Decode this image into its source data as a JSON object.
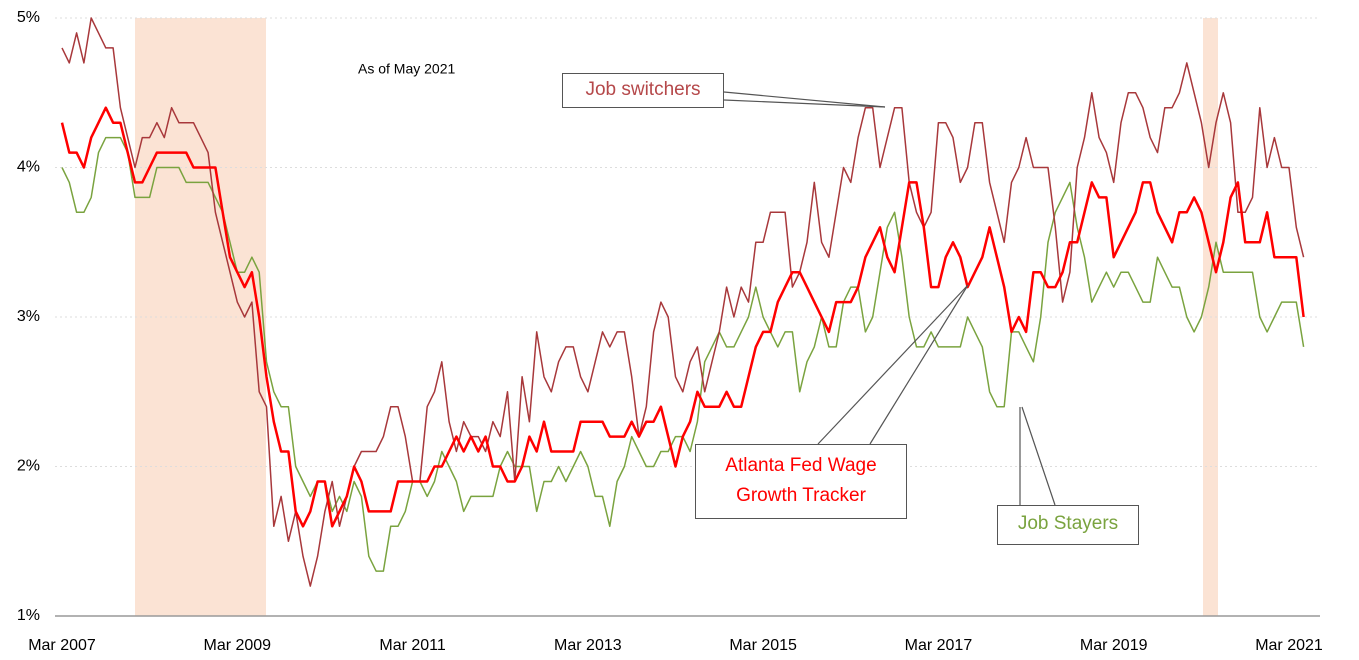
{
  "chart_data": {
    "type": "line",
    "annotation": "As of May 2021",
    "categories": [
      "Mar 2007",
      null,
      null,
      null,
      null,
      null,
      null,
      null,
      null,
      null,
      null,
      null,
      null,
      null,
      null,
      null,
      null,
      null,
      null,
      null,
      null,
      null,
      null,
      null,
      "Mar 2009",
      null,
      null,
      null,
      null,
      null,
      null,
      null,
      null,
      null,
      null,
      null,
      null,
      null,
      null,
      null,
      null,
      null,
      null,
      null,
      null,
      null,
      null,
      null,
      "Mar 2011",
      null,
      null,
      null,
      null,
      null,
      null,
      null,
      null,
      null,
      null,
      null,
      null,
      null,
      null,
      null,
      null,
      null,
      null,
      null,
      null,
      null,
      null,
      null,
      "Mar 2013",
      null,
      null,
      null,
      null,
      null,
      null,
      null,
      null,
      null,
      null,
      null,
      null,
      null,
      null,
      null,
      null,
      null,
      null,
      null,
      null,
      null,
      null,
      null,
      "Mar 2015",
      null,
      null,
      null,
      null,
      null,
      null,
      null,
      null,
      null,
      null,
      null,
      null,
      null,
      null,
      null,
      null,
      null,
      null,
      null,
      null,
      null,
      null,
      null,
      "Mar 2017",
      null,
      null,
      null,
      null,
      null,
      null,
      null,
      null,
      null,
      null,
      null,
      null,
      null,
      null,
      null,
      null,
      null,
      null,
      null,
      null,
      null,
      null,
      null,
      "Mar 2019",
      null,
      null,
      null,
      null,
      null,
      null,
      null,
      null,
      null,
      null,
      null,
      null,
      null,
      null,
      null,
      null,
      null,
      null,
      null,
      null,
      null,
      null,
      null,
      "Mar 2021",
      null,
      null
    ],
    "series": [
      {
        "name": "Job switchers",
        "color": "#a8383b",
        "values": [
          4.8,
          4.7,
          4.9,
          4.7,
          5.0,
          4.9,
          4.8,
          4.8,
          4.4,
          4.2,
          4.0,
          4.2,
          4.2,
          4.3,
          4.2,
          4.4,
          4.3,
          4.3,
          4.3,
          4.2,
          4.1,
          3.7,
          3.5,
          3.3,
          3.1,
          3.0,
          3.1,
          2.5,
          2.4,
          1.6,
          1.8,
          1.5,
          1.7,
          1.4,
          1.2,
          1.4,
          1.7,
          1.9,
          1.6,
          1.8,
          2.0,
          2.1,
          2.1,
          2.1,
          2.2,
          2.4,
          2.4,
          2.2,
          1.9,
          1.9,
          2.4,
          2.5,
          2.7,
          2.3,
          2.1,
          2.3,
          2.2,
          2.2,
          2.1,
          2.3,
          2.2,
          2.5,
          1.9,
          2.6,
          2.3,
          2.9,
          2.6,
          2.5,
          2.7,
          2.8,
          2.8,
          2.6,
          2.5,
          2.7,
          2.9,
          2.8,
          2.9,
          2.9,
          2.6,
          2.2,
          2.4,
          2.9,
          3.1,
          3.0,
          2.6,
          2.5,
          2.7,
          2.8,
          2.5,
          2.7,
          2.9,
          3.2,
          3.0,
          3.2,
          3.1,
          3.5,
          3.5,
          3.7,
          3.7,
          3.7,
          3.2,
          3.3,
          3.5,
          3.9,
          3.5,
          3.4,
          3.7,
          4.0,
          3.9,
          4.2,
          4.4,
          4.4,
          4.0,
          4.2,
          4.4,
          4.4,
          3.9,
          3.7,
          3.6,
          3.7,
          4.3,
          4.3,
          4.2,
          3.9,
          4.0,
          4.3,
          4.3,
          3.9,
          3.7,
          3.5,
          3.9,
          4.0,
          4.2,
          4.0,
          4.0,
          4.0,
          3.6,
          3.1,
          3.3,
          4.0,
          4.2,
          4.5,
          4.2,
          4.1,
          3.9,
          4.3,
          4.5,
          4.5,
          4.4,
          4.2,
          4.1,
          4.4,
          4.4,
          4.5,
          4.7,
          4.5,
          4.3,
          4.0,
          4.3,
          4.5,
          4.3,
          3.7,
          3.7,
          3.8,
          4.4,
          4.0,
          4.2,
          4.0,
          4.0,
          3.6,
          3.4
        ]
      },
      {
        "name": "Atlanta Fed Wage Growth Tracker",
        "color": "#ff0000",
        "values": [
          4.3,
          4.1,
          4.1,
          4.0,
          4.2,
          4.3,
          4.4,
          4.3,
          4.3,
          4.1,
          3.9,
          3.9,
          4.0,
          4.1,
          4.1,
          4.1,
          4.1,
          4.1,
          4.0,
          4.0,
          4.0,
          4.0,
          3.7,
          3.4,
          3.3,
          3.2,
          3.3,
          3.0,
          2.6,
          2.3,
          2.1,
          2.1,
          1.7,
          1.6,
          1.7,
          1.9,
          1.9,
          1.6,
          1.7,
          1.8,
          2.0,
          1.9,
          1.7,
          1.7,
          1.7,
          1.7,
          1.9,
          1.9,
          1.9,
          1.9,
          1.9,
          2.0,
          2.0,
          2.1,
          2.2,
          2.1,
          2.2,
          2.1,
          2.2,
          2.0,
          2.0,
          1.9,
          1.9,
          2.0,
          2.2,
          2.1,
          2.3,
          2.1,
          2.1,
          2.1,
          2.1,
          2.3,
          2.3,
          2.3,
          2.3,
          2.2,
          2.2,
          2.2,
          2.3,
          2.2,
          2.3,
          2.3,
          2.4,
          2.2,
          2.0,
          2.2,
          2.3,
          2.5,
          2.4,
          2.4,
          2.4,
          2.5,
          2.4,
          2.4,
          2.6,
          2.8,
          2.9,
          2.9,
          3.1,
          3.2,
          3.3,
          3.3,
          3.2,
          3.1,
          3.0,
          2.9,
          3.1,
          3.1,
          3.1,
          3.2,
          3.4,
          3.5,
          3.6,
          3.4,
          3.3,
          3.6,
          3.9,
          3.9,
          3.6,
          3.2,
          3.2,
          3.4,
          3.5,
          3.4,
          3.2,
          3.3,
          3.4,
          3.6,
          3.4,
          3.2,
          2.9,
          3.0,
          2.9,
          3.3,
          3.3,
          3.2,
          3.2,
          3.3,
          3.5,
          3.5,
          3.7,
          3.9,
          3.8,
          3.8,
          3.4,
          3.5,
          3.6,
          3.7,
          3.9,
          3.9,
          3.7,
          3.6,
          3.5,
          3.7,
          3.7,
          3.8,
          3.7,
          3.5,
          3.3,
          3.5,
          3.8,
          3.9,
          3.5,
          3.5,
          3.5,
          3.7,
          3.4,
          3.4,
          3.4,
          3.4,
          3.0
        ]
      },
      {
        "name": "Job Stayers",
        "color": "#7aa33f",
        "values": [
          4.0,
          3.9,
          3.7,
          3.7,
          3.8,
          4.1,
          4.2,
          4.2,
          4.2,
          4.1,
          3.8,
          3.8,
          3.8,
          4.0,
          4.0,
          4.0,
          4.0,
          3.9,
          3.9,
          3.9,
          3.9,
          3.8,
          3.7,
          3.5,
          3.3,
          3.3,
          3.4,
          3.3,
          2.7,
          2.5,
          2.4,
          2.4,
          2.0,
          1.9,
          1.8,
          1.9,
          1.9,
          1.7,
          1.8,
          1.7,
          1.9,
          1.8,
          1.4,
          1.3,
          1.3,
          1.6,
          1.6,
          1.7,
          1.9,
          1.9,
          1.8,
          1.9,
          2.1,
          2.0,
          1.9,
          1.7,
          1.8,
          1.8,
          1.8,
          1.8,
          2.0,
          2.1,
          2.0,
          2.0,
          2.0,
          1.7,
          1.9,
          1.9,
          2.0,
          1.9,
          2.0,
          2.1,
          2.0,
          1.8,
          1.8,
          1.6,
          1.9,
          2.0,
          2.2,
          2.1,
          2.0,
          2.0,
          2.1,
          2.1,
          2.2,
          2.2,
          2.1,
          2.3,
          2.7,
          2.8,
          2.9,
          2.8,
          2.8,
          2.9,
          3.0,
          3.2,
          3.0,
          2.9,
          2.8,
          2.9,
          2.9,
          2.5,
          2.7,
          2.8,
          3.0,
          2.8,
          2.8,
          3.1,
          3.2,
          3.2,
          2.9,
          3.0,
          3.3,
          3.6,
          3.7,
          3.4,
          3.0,
          2.8,
          2.8,
          2.9,
          2.8,
          2.8,
          2.8,
          2.8,
          3.0,
          2.9,
          2.8,
          2.5,
          2.4,
          2.4,
          2.9,
          2.9,
          2.8,
          2.7,
          3.0,
          3.5,
          3.7,
          3.8,
          3.9,
          3.6,
          3.4,
          3.1,
          3.2,
          3.3,
          3.2,
          3.3,
          3.3,
          3.2,
          3.1,
          3.1,
          3.4,
          3.3,
          3.2,
          3.2,
          3.0,
          2.9,
          3.0,
          3.2,
          3.5,
          3.3,
          3.3,
          3.3,
          3.3,
          3.3,
          3.0,
          2.9,
          3.0,
          3.1,
          3.1,
          3.1,
          2.8
        ]
      }
    ],
    "ylim": [
      1,
      5
    ],
    "yticks": [
      {
        "value": 1,
        "label": "1%"
      },
      {
        "value": 2,
        "label": "2%"
      },
      {
        "value": 3,
        "label": "3%"
      },
      {
        "value": 4,
        "label": "4%"
      },
      {
        "value": 5,
        "label": "5%"
      }
    ],
    "grid": true
  }
}
